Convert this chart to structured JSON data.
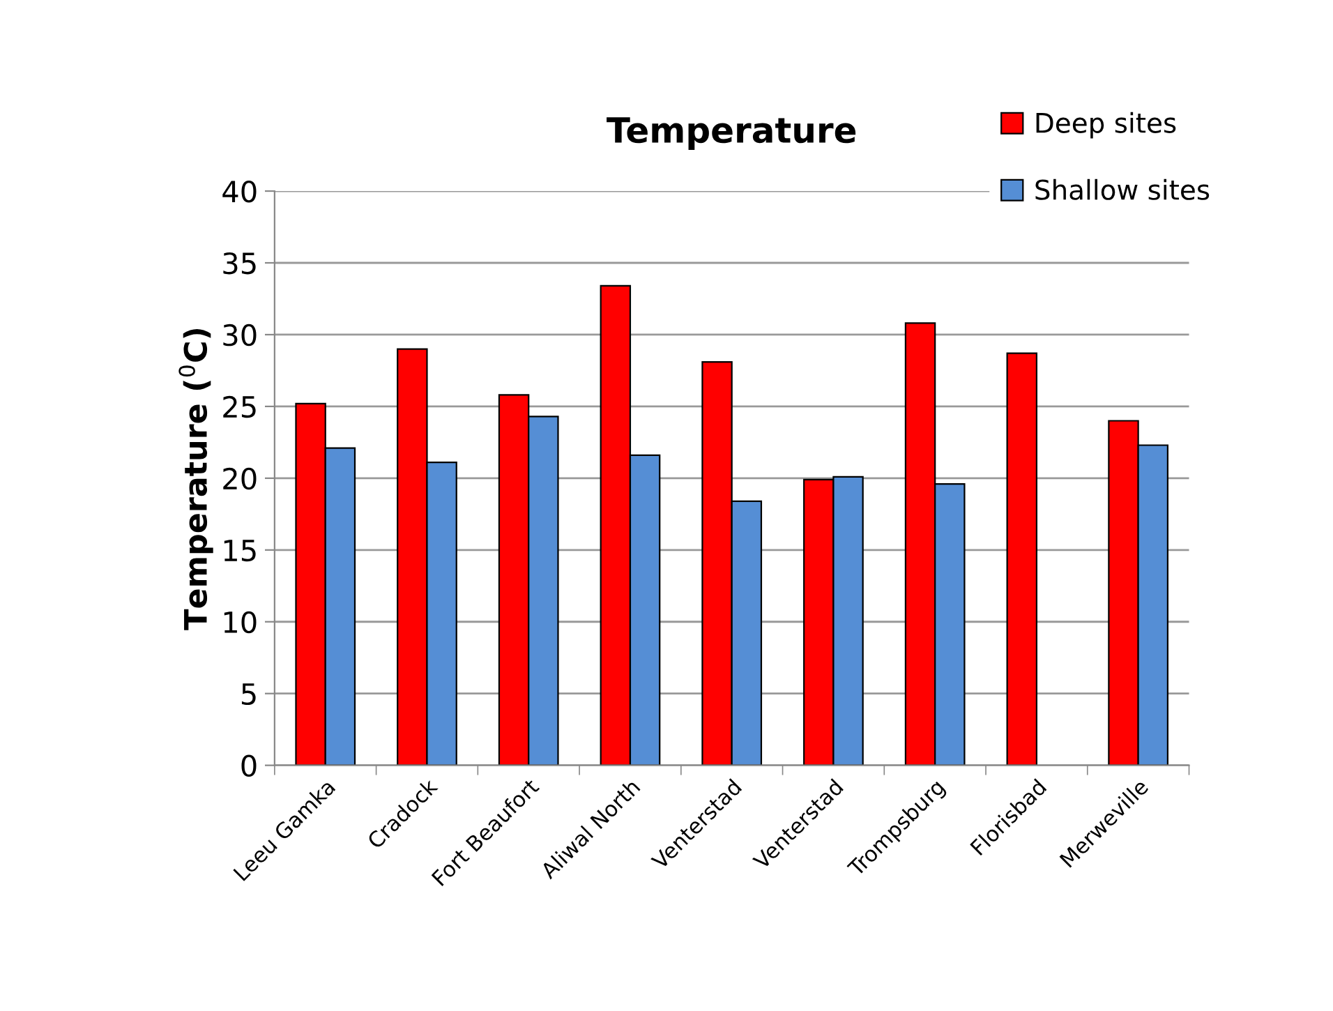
{
  "chart_data": {
    "type": "bar",
    "title": "Temperature",
    "ylabel": "Temperature ($^{0}$C)",
    "categories": [
      "Leeu Gamka",
      "Cradock",
      "Fort Beaufort",
      "Aliwal North",
      "Venterstad",
      "Venterstad",
      "Trompsburg",
      "Florisbad",
      "Merweville"
    ],
    "series": [
      {
        "name": "Deep sites",
        "color": "#ff0000",
        "values": [
          25.2,
          29.0,
          25.8,
          33.4,
          28.1,
          19.9,
          30.8,
          28.7,
          24.0
        ]
      },
      {
        "name": "Shallow sites",
        "color": "#558ed5",
        "values": [
          22.1,
          21.1,
          24.3,
          21.6,
          18.4,
          20.1,
          19.6,
          null,
          22.3
        ]
      }
    ],
    "ylim": [
      0,
      40
    ],
    "yticks": [
      0,
      5,
      10,
      15,
      20,
      25,
      30,
      35,
      40
    ],
    "grid": "y",
    "legend": "top right"
  }
}
